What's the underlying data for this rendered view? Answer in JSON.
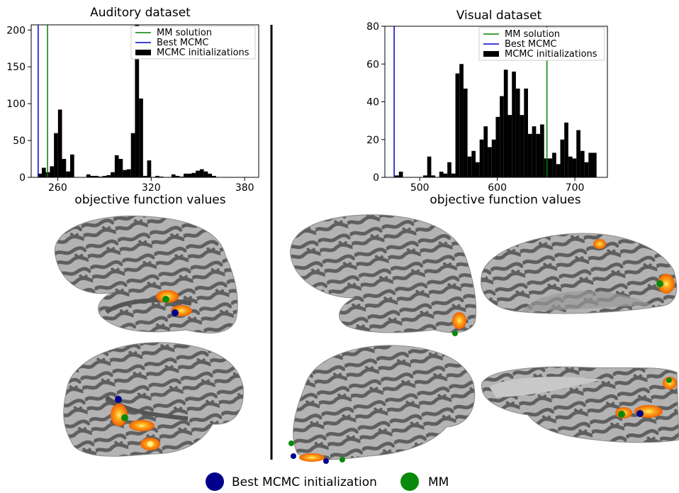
{
  "chart_data": [
    {
      "type": "bar",
      "title": "Auditory dataset",
      "xlabel": "objective function values",
      "ylabel": "",
      "xlim": [
        243,
        389
      ],
      "ylim": [
        0,
        207
      ],
      "xticks": [
        260,
        320,
        380
      ],
      "yticks": [
        0,
        50,
        100,
        150,
        200
      ],
      "grid": false,
      "legend_position": "top-right",
      "bin_width": 2.6,
      "bins": [
        {
          "x": 248.5,
          "v": 5
        },
        {
          "x": 251.1,
          "v": 13
        },
        {
          "x": 253.7,
          "v": 7
        },
        {
          "x": 256.3,
          "v": 15
        },
        {
          "x": 258.9,
          "v": 60
        },
        {
          "x": 261.5,
          "v": 92
        },
        {
          "x": 264.1,
          "v": 25
        },
        {
          "x": 266.7,
          "v": 8
        },
        {
          "x": 269.3,
          "v": 31
        },
        {
          "x": 279.7,
          "v": 4
        },
        {
          "x": 282.3,
          "v": 2
        },
        {
          "x": 284.9,
          "v": 2
        },
        {
          "x": 287.5,
          "v": 1
        },
        {
          "x": 290.1,
          "v": 2
        },
        {
          "x": 292.7,
          "v": 3
        },
        {
          "x": 295.3,
          "v": 7
        },
        {
          "x": 297.9,
          "v": 30
        },
        {
          "x": 300.5,
          "v": 25
        },
        {
          "x": 303.1,
          "v": 10
        },
        {
          "x": 305.7,
          "v": 11
        },
        {
          "x": 308.3,
          "v": 60
        },
        {
          "x": 310.9,
          "v": 207
        },
        {
          "x": 313.5,
          "v": 107
        },
        {
          "x": 316.1,
          "v": 2
        },
        {
          "x": 318.7,
          "v": 23
        },
        {
          "x": 323.9,
          "v": 2
        },
        {
          "x": 326.5,
          "v": 1
        },
        {
          "x": 334.3,
          "v": 4
        },
        {
          "x": 336.9,
          "v": 2
        },
        {
          "x": 339.5,
          "v": 1
        },
        {
          "x": 342.1,
          "v": 5
        },
        {
          "x": 344.7,
          "v": 5
        },
        {
          "x": 347.3,
          "v": 6
        },
        {
          "x": 349.9,
          "v": 9
        },
        {
          "x": 352.5,
          "v": 11
        },
        {
          "x": 355.1,
          "v": 8
        },
        {
          "x": 357.7,
          "v": 5
        },
        {
          "x": 360.3,
          "v": 2
        }
      ],
      "vlines": [
        {
          "name": "MM solution",
          "x": 253.5,
          "color": "#008000"
        },
        {
          "name": "Best MCMC",
          "x": 247.5,
          "color": "#0000cc"
        }
      ],
      "legend": [
        "MM solution",
        "Best MCMC",
        "MCMC initializations"
      ]
    },
    {
      "type": "bar",
      "title": "Visual dataset",
      "xlabel": "objective function values",
      "ylabel": "",
      "xlim": [
        455,
        742
      ],
      "ylim": [
        0,
        80
      ],
      "xticks": [
        500,
        600,
        700
      ],
      "yticks": [
        0,
        20,
        40,
        60,
        80
      ],
      "grid": false,
      "legend_position": "top-right",
      "bin_width": 5.2,
      "bins": [
        {
          "x": 470.5,
          "v": 1
        },
        {
          "x": 475.7,
          "v": 3
        },
        {
          "x": 507,
          "v": 1
        },
        {
          "x": 512.2,
          "v": 11
        },
        {
          "x": 517.4,
          "v": 1
        },
        {
          "x": 527.8,
          "v": 3
        },
        {
          "x": 533,
          "v": 2
        },
        {
          "x": 538.2,
          "v": 8
        },
        {
          "x": 543.4,
          "v": 2
        },
        {
          "x": 548.6,
          "v": 55
        },
        {
          "x": 553.8,
          "v": 60
        },
        {
          "x": 559,
          "v": 47
        },
        {
          "x": 564.2,
          "v": 11
        },
        {
          "x": 569.4,
          "v": 14
        },
        {
          "x": 574.6,
          "v": 8
        },
        {
          "x": 579.8,
          "v": 20
        },
        {
          "x": 585,
          "v": 27
        },
        {
          "x": 590.2,
          "v": 16
        },
        {
          "x": 595.4,
          "v": 20
        },
        {
          "x": 600.6,
          "v": 32
        },
        {
          "x": 605.8,
          "v": 43
        },
        {
          "x": 611,
          "v": 57
        },
        {
          "x": 616.2,
          "v": 33
        },
        {
          "x": 621.4,
          "v": 56
        },
        {
          "x": 626.6,
          "v": 47
        },
        {
          "x": 631.8,
          "v": 33
        },
        {
          "x": 637,
          "v": 47
        },
        {
          "x": 642.2,
          "v": 23
        },
        {
          "x": 647.4,
          "v": 27
        },
        {
          "x": 652.6,
          "v": 23
        },
        {
          "x": 657.8,
          "v": 28
        },
        {
          "x": 663,
          "v": 10
        },
        {
          "x": 668.2,
          "v": 10
        },
        {
          "x": 673.4,
          "v": 13
        },
        {
          "x": 678.6,
          "v": 7
        },
        {
          "x": 683.8,
          "v": 20
        },
        {
          "x": 689,
          "v": 29
        },
        {
          "x": 694.2,
          "v": 11
        },
        {
          "x": 699.4,
          "v": 10
        },
        {
          "x": 704.6,
          "v": 25
        },
        {
          "x": 709.8,
          "v": 14
        },
        {
          "x": 715,
          "v": 8
        },
        {
          "x": 720.2,
          "v": 13
        },
        {
          "x": 725.4,
          "v": 13
        }
      ],
      "vlines": [
        {
          "name": "MM solution",
          "x": 664,
          "color": "#008000"
        },
        {
          "name": "Best MCMC",
          "x": 467,
          "color": "#0000cc"
        }
      ],
      "legend": [
        "MM solution",
        "Best MCMC",
        "MCMC initializations"
      ]
    }
  ],
  "bottom_legend": {
    "items": [
      {
        "label": "Best MCMC initialization",
        "color": "#00008b"
      },
      {
        "label": "MM",
        "color": "#0a8a0a"
      }
    ]
  },
  "images": [
    {
      "label": "auditory-brain-top",
      "type": "inflated brain surface with orange activation and markers"
    },
    {
      "label": "auditory-brain-bottom",
      "type": "inflated brain surface with orange activation and markers"
    },
    {
      "label": "visual-brain-top-left",
      "type": "inflated brain surface"
    },
    {
      "label": "visual-brain-top-right",
      "type": "inflated brain surface"
    },
    {
      "label": "visual-brain-bottom-left",
      "type": "inflated brain surface"
    },
    {
      "label": "visual-brain-bottom-right",
      "type": "inflated brain surface"
    }
  ],
  "colors": {
    "bars": "#000000",
    "gyri": "#b5b5b5",
    "sulci": "#5e5e5e",
    "activation": "#f06b00",
    "activation_core": "#ffe760"
  }
}
